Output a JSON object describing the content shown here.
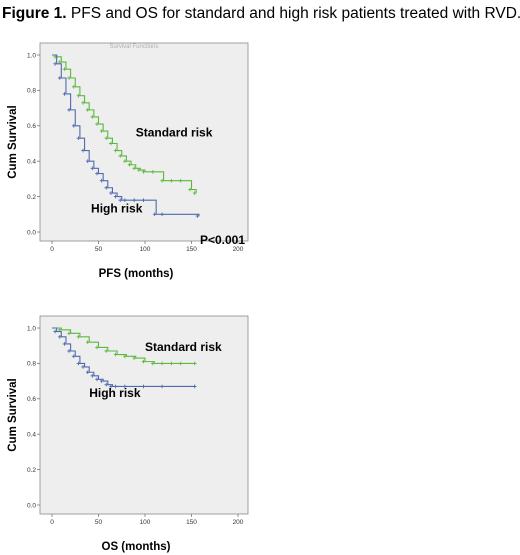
{
  "figure": {
    "label": "Figure 1.",
    "caption": " PFS and OS for standard and high risk patients treated with RVD."
  },
  "colors": {
    "standard": "#5cb841",
    "high": "#4f6aae",
    "plot_bg": "#eeeeee"
  },
  "chart_data": [
    {
      "type": "line",
      "title": "Survival Functions",
      "xlabel": "PFS (months)",
      "ylabel": "Cum Survival",
      "xlim": [
        0,
        200
      ],
      "ylim": [
        0,
        1.0
      ],
      "xticks": [
        "0",
        "50",
        "100",
        "150",
        "200"
      ],
      "yticks": [
        "0.0",
        "0.2",
        "0.4",
        "0.6",
        "0.8",
        "1.0"
      ],
      "pvalue": "P<0.001",
      "series": [
        {
          "name": "Standard risk",
          "key": "standard",
          "x": [
            0,
            5,
            10,
            15,
            20,
            25,
            30,
            35,
            40,
            45,
            50,
            55,
            60,
            65,
            70,
            75,
            80,
            85,
            90,
            95,
            100,
            110,
            120,
            130,
            140,
            150,
            155
          ],
          "y": [
            1.0,
            0.99,
            0.96,
            0.92,
            0.87,
            0.82,
            0.77,
            0.73,
            0.69,
            0.65,
            0.61,
            0.57,
            0.53,
            0.5,
            0.46,
            0.43,
            0.4,
            0.38,
            0.36,
            0.35,
            0.34,
            0.34,
            0.29,
            0.29,
            0.29,
            0.24,
            0.22
          ],
          "label_pos": [
            90,
            0.54
          ]
        },
        {
          "name": "High risk",
          "key": "high",
          "x": [
            0,
            5,
            10,
            15,
            20,
            25,
            30,
            35,
            40,
            45,
            50,
            55,
            60,
            65,
            70,
            75,
            80,
            90,
            100,
            112,
            120,
            158
          ],
          "y": [
            1.0,
            0.95,
            0.87,
            0.78,
            0.69,
            0.6,
            0.53,
            0.46,
            0.4,
            0.36,
            0.33,
            0.29,
            0.25,
            0.22,
            0.2,
            0.18,
            0.18,
            0.18,
            0.18,
            0.1,
            0.1,
            0.09
          ],
          "label_pos": [
            42,
            0.11
          ]
        }
      ]
    },
    {
      "type": "line",
      "xlabel": "OS (months)",
      "ylabel": "Cum Survival",
      "xlim": [
        0,
        200
      ],
      "ylim": [
        0,
        1.0
      ],
      "xticks": [
        "0",
        "50",
        "100",
        "150",
        "200"
      ],
      "yticks": [
        "0.0",
        "0.2",
        "0.4",
        "0.6",
        "0.8",
        "1.0"
      ],
      "series": [
        {
          "name": "Standard risk",
          "key": "standard",
          "x": [
            0,
            10,
            20,
            30,
            40,
            50,
            60,
            70,
            80,
            90,
            100,
            110,
            120,
            130,
            140,
            155
          ],
          "y": [
            1.0,
            0.99,
            0.97,
            0.95,
            0.92,
            0.89,
            0.87,
            0.85,
            0.84,
            0.83,
            0.81,
            0.8,
            0.8,
            0.8,
            0.8,
            0.8
          ],
          "label_pos": [
            100,
            0.87
          ]
        },
        {
          "name": "High risk",
          "key": "high",
          "x": [
            0,
            5,
            10,
            15,
            20,
            25,
            30,
            35,
            40,
            45,
            50,
            55,
            60,
            65,
            70,
            80,
            100,
            120,
            155
          ],
          "y": [
            1.0,
            0.98,
            0.95,
            0.91,
            0.87,
            0.84,
            0.8,
            0.78,
            0.75,
            0.73,
            0.71,
            0.7,
            0.68,
            0.67,
            0.67,
            0.67,
            0.67,
            0.67,
            0.67
          ],
          "label_pos": [
            40,
            0.61
          ]
        }
      ]
    }
  ]
}
